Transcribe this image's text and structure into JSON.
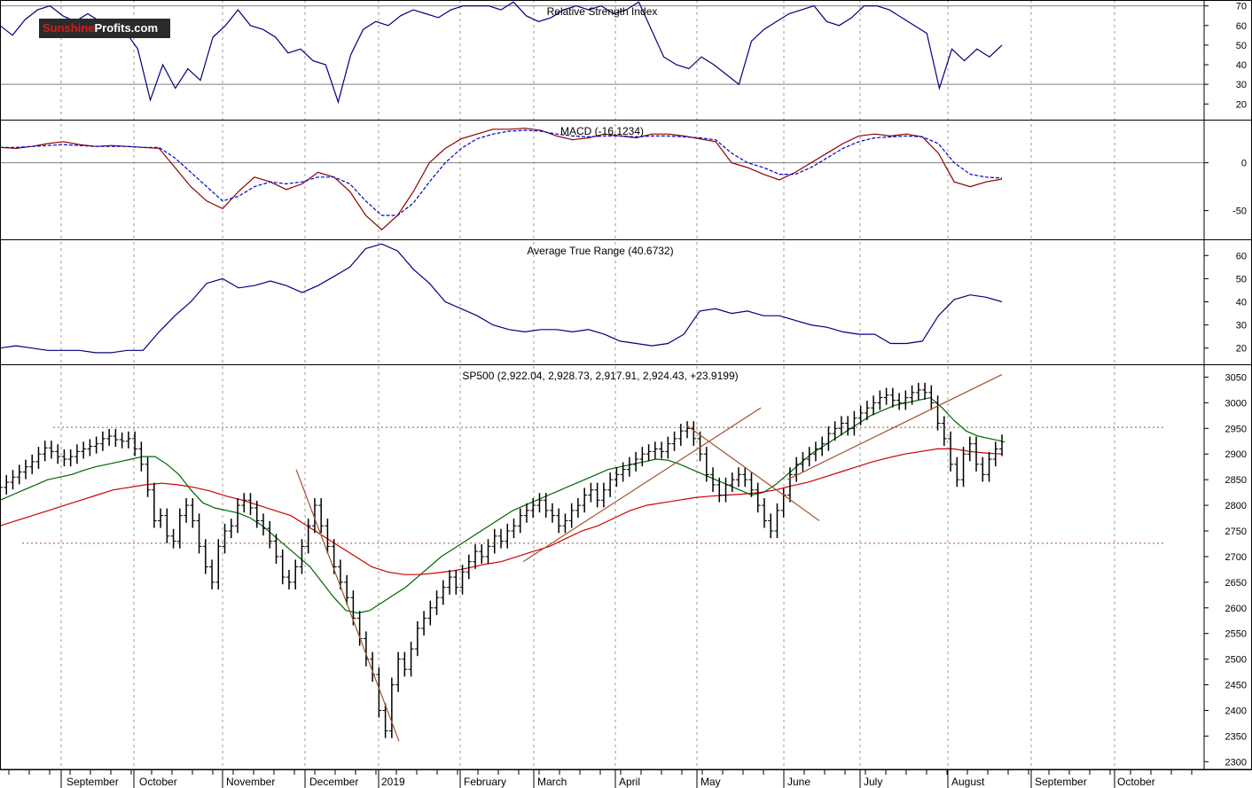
{
  "logo": {
    "part1": "Sunshine",
    "part2": "Profits.com"
  },
  "colors": {
    "rsi": "#000080",
    "macd": "#8b0000",
    "signal": "#0000cd",
    "atr": "#000080",
    "ma_short": "#006400",
    "ma_long": "#cc0000",
    "trend": "#a0522d",
    "hline": "#a0522d",
    "grid": "#9a9a9a",
    "bars": "#000000",
    "logo_bg": "#2b2b2b"
  },
  "months": [
    "September",
    "October",
    "November",
    "December",
    "2019",
    "February",
    "March",
    "April",
    "May",
    "June",
    "July",
    "August",
    "September",
    "October"
  ],
  "chart_data": [
    {
      "type": "line",
      "title": "Relative Strength Index",
      "yticks": [
        20,
        30,
        40,
        50,
        60,
        70
      ],
      "ylim": [
        12,
        73
      ],
      "hlines": [
        30,
        70
      ],
      "series": [
        {
          "values": [
            60,
            55,
            63,
            68,
            70,
            65,
            62,
            66,
            62,
            58,
            57,
            48,
            22,
            40,
            28,
            38,
            32,
            54,
            60,
            68,
            60,
            58,
            54,
            46,
            48,
            42,
            40,
            21,
            45,
            58,
            62,
            60,
            65,
            68,
            66,
            64,
            68,
            70,
            70,
            70,
            68,
            72,
            65,
            62,
            64,
            68,
            70,
            68,
            70,
            66,
            68,
            72,
            58,
            44,
            40,
            38,
            44,
            40,
            35,
            30,
            52,
            58,
            62,
            66,
            68,
            70,
            62,
            60,
            64,
            70,
            70,
            68,
            64,
            60,
            56,
            28,
            48,
            42,
            48,
            44,
            50
          ]
        }
      ]
    },
    {
      "type": "line",
      "title": "MACD (-16.1234)",
      "yticks": [
        0,
        -50
      ],
      "ylim": [
        -80,
        45
      ],
      "series": [
        {
          "values": [
            16,
            15,
            17,
            20,
            22,
            19,
            17,
            18,
            17,
            16,
            15,
            -5,
            -25,
            -40,
            -48,
            -30,
            -15,
            -20,
            -28,
            -22,
            -10,
            -15,
            -30,
            -55,
            -70,
            -55,
            -30,
            0,
            15,
            25,
            30,
            35,
            35,
            36,
            34,
            28,
            24,
            26,
            30,
            28,
            26,
            30,
            30,
            28,
            25,
            22,
            0,
            -5,
            -12,
            -18,
            -10,
            0,
            10,
            20,
            28,
            30,
            28,
            30,
            27,
            10,
            -20,
            -25,
            -20,
            -17
          ]
        },
        {
          "values": [
            16,
            16,
            17,
            18,
            19,
            18,
            17,
            17,
            17,
            16,
            16,
            5,
            -10,
            -25,
            -40,
            -35,
            -25,
            -20,
            -22,
            -20,
            -15,
            -15,
            -22,
            -40,
            -55,
            -55,
            -42,
            -20,
            0,
            15,
            25,
            30,
            33,
            34,
            33,
            30,
            28,
            27,
            28,
            28,
            27,
            28,
            28,
            27,
            26,
            24,
            10,
            0,
            -5,
            -12,
            -12,
            -5,
            5,
            15,
            22,
            26,
            27,
            28,
            27,
            20,
            0,
            -12,
            -15,
            -16
          ]
        }
      ]
    },
    {
      "type": "line",
      "title": "Average True Range (40.6732)",
      "yticks": [
        20,
        30,
        40,
        50,
        60
      ],
      "ylim": [
        13,
        67
      ],
      "series": [
        {
          "values": [
            20,
            21,
            20,
            19,
            19,
            19,
            18,
            18,
            19,
            19,
            27,
            34,
            40,
            48,
            50,
            46,
            47,
            49,
            47,
            44,
            47,
            51,
            55,
            63,
            65,
            62,
            54,
            48,
            40,
            37,
            34,
            30,
            28,
            27,
            28,
            28,
            27,
            28,
            26,
            23,
            22,
            21,
            22,
            26,
            36,
            37,
            35,
            36,
            34,
            34,
            32,
            30,
            29,
            27,
            26,
            26,
            22,
            22,
            23,
            34,
            41,
            43,
            42,
            40
          ]
        }
      ]
    },
    {
      "type": "bar",
      "title": "SP500 (2,922.04, 2,928.73, 2,917.91, 2,924.43, +23.9199)",
      "yticks": [
        2300,
        2350,
        2400,
        2450,
        2500,
        2550,
        2600,
        2650,
        2700,
        2750,
        2800,
        2850,
        2900,
        2950,
        3000,
        3050
      ],
      "ylim": [
        2285,
        3075
      ],
      "hlines": [
        2952,
        2726
      ],
      "closes": [
        2835,
        2845,
        2855,
        2865,
        2875,
        2885,
        2900,
        2912,
        2905,
        2895,
        2890,
        2895,
        2905,
        2910,
        2915,
        2920,
        2930,
        2935,
        2928,
        2925,
        2930,
        2910,
        2880,
        2830,
        2770,
        2780,
        2740,
        2730,
        2780,
        2800,
        2770,
        2720,
        2680,
        2650,
        2720,
        2750,
        2760,
        2800,
        2810,
        2795,
        2770,
        2755,
        2730,
        2700,
        2660,
        2650,
        2680,
        2720,
        2760,
        2800,
        2760,
        2720,
        2680,
        2650,
        2620,
        2580,
        2540,
        2500,
        2470,
        2400,
        2360,
        2450,
        2500,
        2480,
        2520,
        2560,
        2580,
        2600,
        2620,
        2640,
        2660,
        2640,
        2670,
        2690,
        2710,
        2700,
        2720,
        2740,
        2730,
        2750,
        2760,
        2780,
        2790,
        2800,
        2810,
        2790,
        2780,
        2760,
        2770,
        2790,
        2800,
        2820,
        2830,
        2810,
        2830,
        2850,
        2860,
        2870,
        2880,
        2890,
        2900,
        2905,
        2910,
        2905,
        2920,
        2930,
        2945,
        2950,
        2930,
        2900,
        2860,
        2840,
        2820,
        2840,
        2850,
        2860,
        2850,
        2830,
        2800,
        2770,
        2750,
        2790,
        2820,
        2860,
        2880,
        2890,
        2900,
        2910,
        2920,
        2940,
        2950,
        2960,
        2950,
        2970,
        2980,
        2990,
        3000,
        3010,
        3015,
        3005,
        3000,
        3010,
        3020,
        3025,
        3020,
        3000,
        2960,
        2930,
        2880,
        2850,
        2900,
        2920,
        2880,
        2860,
        2890,
        2910,
        2924
      ],
      "ma_short": [
        2810,
        2820,
        2830,
        2840,
        2850,
        2855,
        2860,
        2868,
        2875,
        2880,
        2885,
        2890,
        2895,
        2895,
        2880,
        2860,
        2830,
        2805,
        2795,
        2790,
        2785,
        2775,
        2760,
        2740,
        2720,
        2700,
        2680,
        2650,
        2620,
        2595,
        2590,
        2595,
        2610,
        2625,
        2640,
        2660,
        2680,
        2700,
        2715,
        2730,
        2745,
        2760,
        2775,
        2790,
        2800,
        2810,
        2820,
        2830,
        2840,
        2850,
        2860,
        2870,
        2875,
        2880,
        2885,
        2890,
        2888,
        2880,
        2870,
        2860,
        2850,
        2840,
        2830,
        2820,
        2825,
        2840,
        2860,
        2880,
        2900,
        2915,
        2930,
        2945,
        2960,
        2975,
        2985,
        2995,
        3000,
        3005,
        3010,
        2990,
        2965,
        2945,
        2935,
        2930,
        2925
      ],
      "ma_long": [
        2760,
        2770,
        2780,
        2790,
        2800,
        2810,
        2820,
        2830,
        2835,
        2840,
        2843,
        2840,
        2835,
        2828,
        2818,
        2810,
        2800,
        2790,
        2780,
        2760,
        2740,
        2720,
        2700,
        2680,
        2670,
        2665,
        2665,
        2668,
        2672,
        2678,
        2685,
        2690,
        2700,
        2710,
        2720,
        2735,
        2750,
        2760,
        2775,
        2790,
        2800,
        2805,
        2810,
        2815,
        2818,
        2820,
        2822,
        2825,
        2830,
        2838,
        2845,
        2855,
        2865,
        2875,
        2885,
        2893,
        2900,
        2905,
        2910,
        2910,
        2905,
        2902,
        2900
      ],
      "trendlines": [
        {
          "from": [
            0.0,
            2870
          ],
          "to": [
            1.0,
            2340
          ]
        },
        {
          "from": [
            0.0,
            2690
          ],
          "to": [
            1.0,
            2990
          ]
        },
        {
          "from": [
            0.0,
            2955
          ],
          "to": [
            1.0,
            2770
          ]
        },
        {
          "from": [
            0.0,
            2850
          ],
          "to": [
            1.0,
            3055
          ]
        }
      ]
    }
  ]
}
